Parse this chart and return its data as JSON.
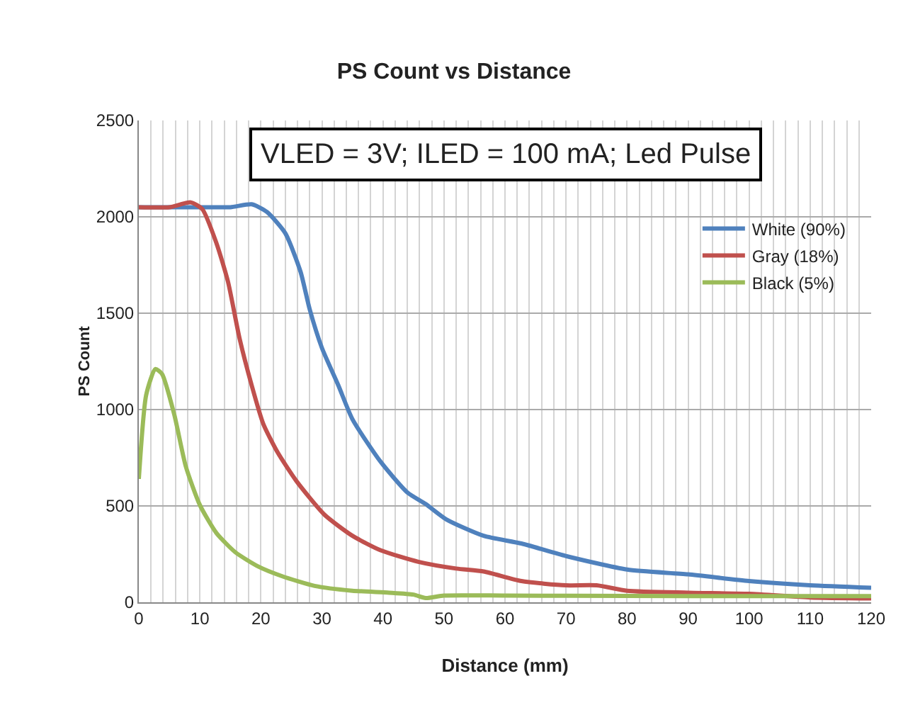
{
  "chart_data": {
    "type": "line",
    "title": "PS Count vs Distance",
    "xlabel": "Distance (mm)",
    "ylabel": "PS Count",
    "annotations": [
      "VLED = 3V; ILED = 100 mA; Led Pulse"
    ],
    "xlim": [
      0,
      120
    ],
    "xticks": [
      0,
      {
        "value": 2,
        "label": null
      },
      {
        "value": 4,
        "label": null
      },
      {
        "value": 6,
        "label": null
      },
      {
        "value": 8,
        "label": null
      },
      10,
      {
        "value": 12,
        "label": null
      },
      {
        "value": 14,
        "label": null
      },
      {
        "value": 16,
        "label": null
      },
      {
        "value": 18,
        "label": null
      },
      20,
      {
        "value": 22,
        "label": null
      },
      {
        "value": 24,
        "label": null
      },
      {
        "value": 26,
        "label": null
      },
      {
        "value": 28,
        "label": null
      },
      30,
      {
        "value": 32,
        "label": null
      },
      {
        "value": 34,
        "label": null
      },
      {
        "value": 36,
        "label": null
      },
      {
        "value": 38,
        "label": null
      },
      40,
      {
        "value": 42,
        "label": null
      },
      {
        "value": 44,
        "label": null
      },
      {
        "value": 46,
        "label": null
      },
      {
        "value": 48,
        "label": null
      },
      50,
      {
        "value": 52,
        "label": null
      },
      {
        "value": 54,
        "label": null
      },
      {
        "value": 56,
        "label": null
      },
      {
        "value": 58,
        "label": null
      },
      60,
      {
        "value": 62,
        "label": null
      },
      {
        "value": 64,
        "label": null
      },
      {
        "value": 66,
        "label": null
      },
      {
        "value": 68,
        "label": null
      },
      70,
      {
        "value": 72,
        "label": null
      },
      {
        "value": 74,
        "label": null
      },
      {
        "value": 76,
        "label": null
      },
      {
        "value": 78,
        "label": null
      },
      80,
      {
        "value": 82,
        "label": null
      },
      {
        "value": 84,
        "label": null
      },
      {
        "value": 86,
        "label": null
      },
      {
        "value": 88,
        "label": null
      },
      90,
      {
        "value": 92,
        "label": null
      },
      {
        "value": 94,
        "label": null
      },
      {
        "value": 96,
        "label": null
      },
      {
        "value": 98,
        "label": null
      },
      100,
      {
        "value": 102,
        "label": null
      },
      {
        "value": 104,
        "label": null
      },
      {
        "value": 106,
        "label": null
      },
      {
        "value": 108,
        "label": null
      },
      110,
      {
        "value": 112,
        "label": null
      },
      {
        "value": 114,
        "label": null
      },
      {
        "value": 116,
        "label": null
      },
      {
        "value": 118,
        "label": null
      },
      120
    ],
    "ylim": [
      0,
      2500
    ],
    "yticks": [
      0,
      500,
      1000,
      1500,
      2000,
      2500
    ],
    "grid": true,
    "legend": "right",
    "marker": "none",
    "line_style": "solid",
    "series": [
      {
        "name": "White (90%)",
        "color": "#4f81bd",
        "x": [
          0,
          5,
          10,
          15,
          18.5,
          21,
          24,
          26.5,
          28,
          30,
          32.7,
          35,
          39.6,
          44,
          47,
          50.4,
          56.5,
          62.7,
          70,
          80,
          90,
          100,
          110,
          120
        ],
        "values": [
          2050,
          2050,
          2050,
          2050,
          2065,
          2025,
          1915,
          1715,
          1520,
          1320,
          1125,
          950,
          730,
          570,
          510,
          430,
          345,
          305,
          240,
          170,
          145,
          110,
          88,
          75
        ]
      },
      {
        "name": "Gray (18%)",
        "color": "#c0504d",
        "x": [
          0,
          5,
          8.5,
          10.4,
          12.7,
          14.6,
          16.5,
          18.5,
          20.4,
          22.7,
          25.8,
          30.4,
          35,
          39.6,
          45.8,
          52,
          56.5,
          62.7,
          70,
          75,
          80,
          90,
          100,
          110,
          120
        ],
        "values": [
          2050,
          2050,
          2075,
          2040,
          1865,
          1665,
          1370,
          1125,
          925,
          780,
          630,
          455,
          345,
          270,
          210,
          175,
          160,
          110,
          88,
          88,
          60,
          50,
          44,
          25,
          20
        ]
      },
      {
        "name": "Black (5%)",
        "color": "#9bbb59",
        "x": [
          0,
          1.2,
          2.7,
          3.8,
          5.8,
          7.7,
          10,
          12.7,
          15.8,
          19.6,
          23.5,
          28.8,
          35,
          41,
          45,
          47,
          50,
          60,
          80,
          100,
          120
        ],
        "values": [
          640,
          1075,
          1210,
          1185,
          975,
          705,
          505,
          360,
          260,
          185,
          135,
          85,
          60,
          50,
          40,
          22,
          35,
          35,
          33,
          32,
          32
        ]
      }
    ]
  }
}
